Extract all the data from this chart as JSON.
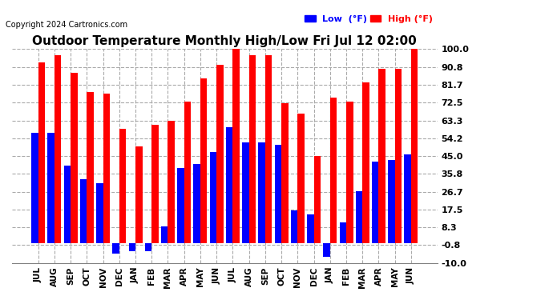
{
  "title": "Outdoor Temperature Monthly High/Low Fri Jul 12 02:00",
  "copyright": "Copyright 2024 Cartronics.com",
  "legend_low": "Low  (°F)",
  "legend_high": "High (°F)",
  "months": [
    "JUL",
    "AUG",
    "SEP",
    "OCT",
    "NOV",
    "DEC",
    "JAN",
    "FEB",
    "MAR",
    "APR",
    "MAY",
    "JUN",
    "JUL",
    "AUG",
    "SEP",
    "OCT",
    "NOV",
    "DEC",
    "JAN",
    "FEB",
    "MAR",
    "APR",
    "MAY",
    "JUN"
  ],
  "high": [
    93,
    97,
    88,
    78,
    77,
    59,
    50,
    61,
    63,
    73,
    85,
    92,
    100,
    97,
    97,
    72,
    67,
    45,
    75,
    73,
    83,
    90,
    90,
    100
  ],
  "low": [
    57,
    57,
    40,
    33,
    31,
    -5,
    -4,
    -4,
    9,
    39,
    41,
    47,
    60,
    52,
    52,
    51,
    17,
    15,
    -7,
    11,
    27,
    42,
    43,
    46
  ],
  "yticks": [
    -10.0,
    -0.8,
    8.3,
    17.5,
    26.7,
    35.8,
    45.0,
    54.2,
    63.3,
    72.5,
    81.7,
    90.8,
    100.0
  ],
  "ytick_labels": [
    "-10.0",
    "-0.8",
    "8.3",
    "17.5",
    "26.7",
    "35.8",
    "45.0",
    "54.2",
    "63.3",
    "72.5",
    "81.7",
    "90.8",
    "100.0"
  ],
  "ymin": -10.0,
  "ymax": 100.0,
  "high_color": "#ff0000",
  "low_color": "#0000ff",
  "bg_color": "#ffffff",
  "plot_bg_color": "#ffffff",
  "grid_color": "#aaaaaa",
  "title_color": "#000000",
  "copyright_color": "#000000",
  "title_fontsize": 11,
  "copyright_fontsize": 7,
  "tick_fontsize": 8,
  "xtick_fontsize": 7.5
}
